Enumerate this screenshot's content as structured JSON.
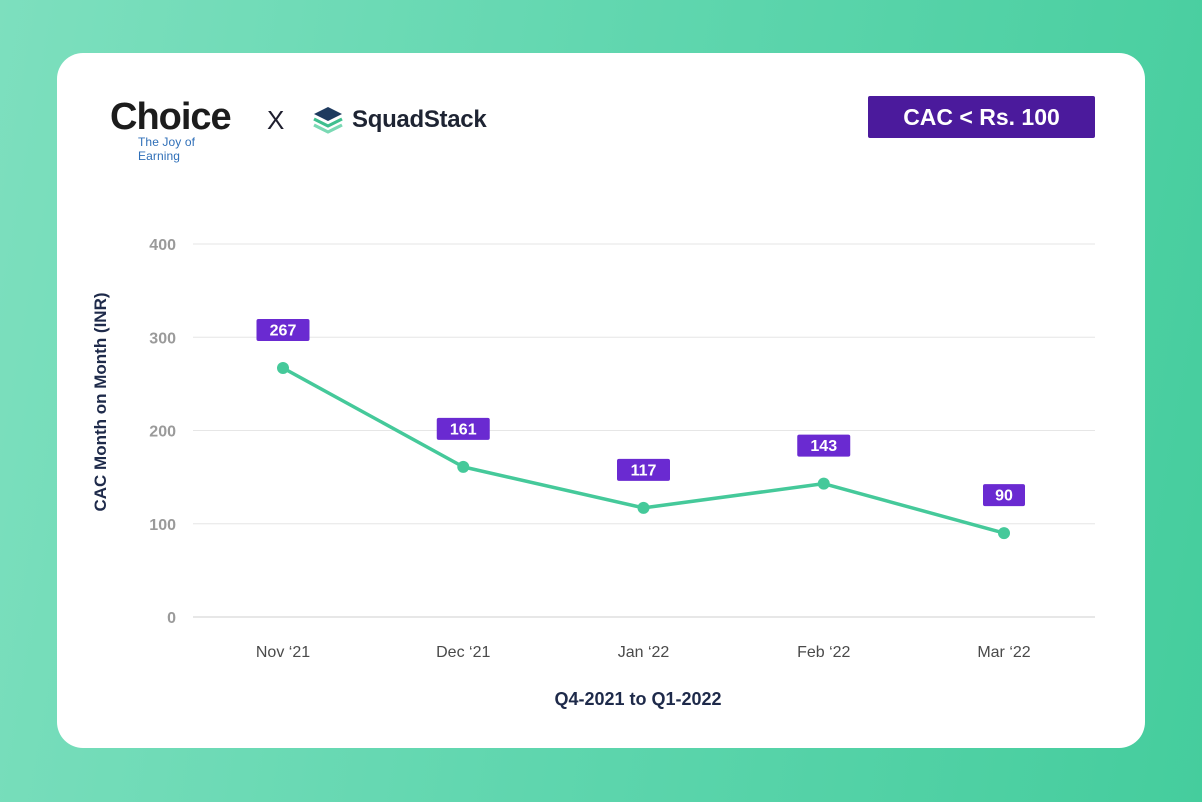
{
  "brands": {
    "left_name": "Choice",
    "left_tagline": "The Joy of Earning",
    "separator": "X",
    "right_name": "SquadStack",
    "right_logo_icon": "squadstack-stack-icon"
  },
  "badge": {
    "label": "CAC < Rs. 100"
  },
  "colors": {
    "line": "#45c99a",
    "label_bg": "#6a2ad1",
    "badge_bg": "#4b1a9c",
    "axis_text": "#9a9a9a",
    "title_text": "#1e2a4a"
  },
  "chart_data": {
    "type": "line",
    "categories": [
      "Nov ‘21",
      "Dec ‘21",
      "Jan ‘22",
      "Feb ‘22",
      "Mar ‘22"
    ],
    "series": [
      {
        "values": [
          267,
          161,
          117,
          143,
          90
        ]
      }
    ],
    "data_labels": [
      "267",
      "161",
      "117",
      "143",
      "90"
    ],
    "xlabel": "Q4-2021 to Q1-2022",
    "ylabel": "CAC  Month on Month (INR)",
    "ylim": [
      0,
      400
    ],
    "yticks": [
      0,
      100,
      200,
      300,
      400
    ],
    "ytick_labels": [
      "0",
      "100",
      "200",
      "300",
      "400"
    ],
    "grid": true,
    "legend": "none"
  }
}
